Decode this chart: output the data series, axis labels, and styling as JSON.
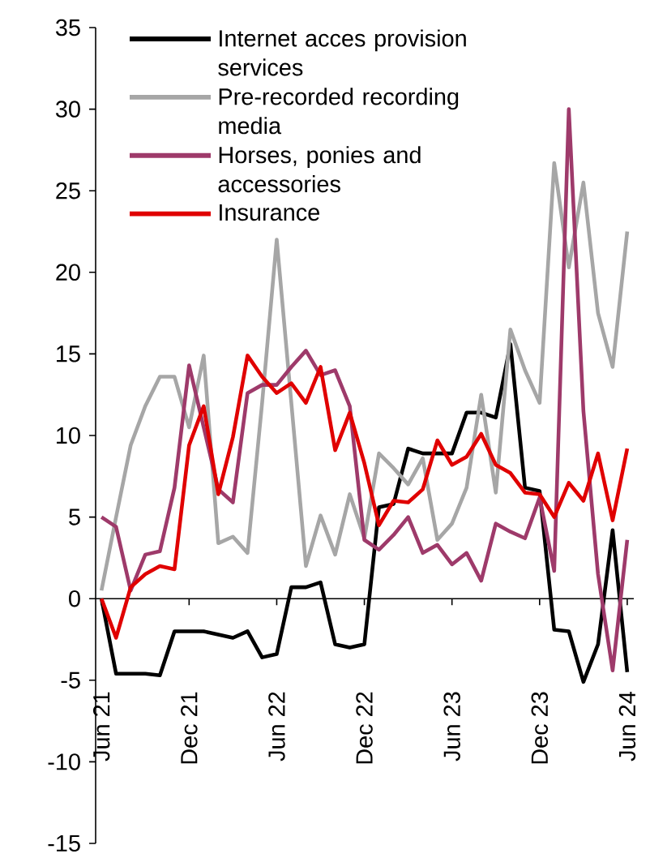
{
  "chart_data": {
    "type": "line",
    "categories": [
      "Jun 21",
      null,
      null,
      null,
      null,
      null,
      "Dec 21",
      null,
      null,
      null,
      null,
      null,
      "Jun 22",
      null,
      null,
      null,
      null,
      null,
      "Dec 22",
      null,
      null,
      null,
      null,
      null,
      "Jun 23",
      null,
      null,
      null,
      null,
      null,
      "Dec 23",
      null,
      null,
      null,
      null,
      null,
      "Jun 24"
    ],
    "series": [
      {
        "name": "Internet acces provision services",
        "color": "#000000",
        "values": [
          0,
          -4.6,
          -4.6,
          -4.6,
          -4.7,
          -2.0,
          -2.0,
          -2.0,
          -2.2,
          -2.4,
          -2.0,
          -3.6,
          -3.4,
          0.7,
          0.7,
          1.0,
          -2.8,
          -3.0,
          -2.8,
          5.6,
          5.8,
          9.2,
          8.9,
          8.9,
          8.9,
          11.4,
          11.4,
          11.1,
          15.6,
          6.8,
          6.6,
          -1.9,
          -2.0,
          -5.1,
          -2.8,
          4.2,
          -4.5
        ]
      },
      {
        "name": "Pre-recorded recording media",
        "color": "#a6a6a6",
        "values": [
          0.5,
          5.0,
          9.4,
          11.8,
          13.6,
          13.6,
          10.5,
          14.9,
          3.4,
          3.8,
          2.8,
          12.0,
          22.0,
          12.0,
          2.0,
          5.1,
          2.7,
          6.4,
          3.7,
          8.9,
          8.0,
          7.0,
          8.6,
          3.6,
          4.6,
          6.8,
          12.5,
          6.5,
          16.5,
          14.0,
          12.0,
          26.7,
          20.3,
          25.5,
          17.5,
          14.2,
          22.5
        ]
      },
      {
        "name": "Horses, ponies and accessories",
        "color": "#9e3a6a",
        "values": [
          5.0,
          4.4,
          0.5,
          2.7,
          2.9,
          6.8,
          14.3,
          10.5,
          6.7,
          5.9,
          12.6,
          13.1,
          13.1,
          14.2,
          15.2,
          13.7,
          14.0,
          11.8,
          3.6,
          3.0,
          3.9,
          5.0,
          2.8,
          3.3,
          2.1,
          2.8,
          1.1,
          4.6,
          4.1,
          3.7,
          6.2,
          1.7,
          30.0,
          11.5,
          1.5,
          -4.4,
          3.6
        ]
      },
      {
        "name": "Insurance",
        "color": "#e00000",
        "values": [
          0,
          -2.4,
          0.7,
          1.5,
          2.0,
          1.8,
          9.4,
          11.8,
          6.4,
          9.9,
          14.9,
          13.6,
          12.6,
          13.2,
          12.0,
          14.2,
          9.1,
          11.4,
          8.3,
          4.5,
          6.0,
          5.9,
          6.7,
          9.7,
          8.2,
          8.7,
          10.1,
          8.2,
          7.7,
          6.5,
          6.4,
          5.0,
          7.1,
          6.0,
          8.9,
          4.8,
          9.2
        ]
      }
    ],
    "ylim": [
      -15,
      35
    ],
    "yticks": [
      -15,
      -10,
      -5,
      0,
      5,
      10,
      15,
      20,
      25,
      30,
      35
    ],
    "legend": "top left",
    "marker": "none",
    "line_style": "solid"
  }
}
